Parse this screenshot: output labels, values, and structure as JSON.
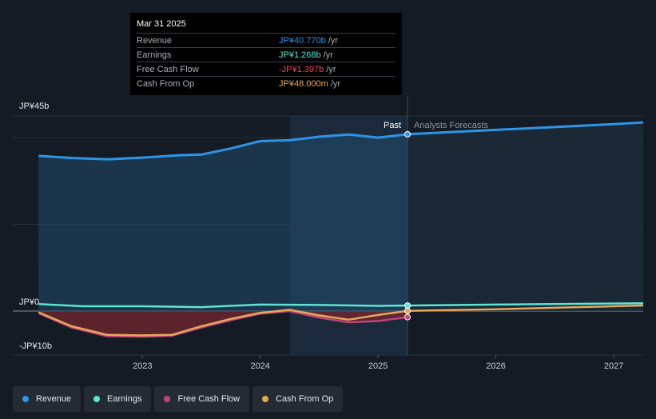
{
  "tooltip": {
    "date": "Mar 31 2025",
    "rows": [
      {
        "label": "Revenue",
        "value": "JP¥40.770b",
        "unit": "/yr",
        "color": "#2f95e6"
      },
      {
        "label": "Earnings",
        "value": "JP¥1.268b",
        "unit": "/yr",
        "color": "#5fe3d3"
      },
      {
        "label": "Free Cash Flow",
        "value": "-JP¥1.397b",
        "unit": "/yr",
        "color": "#e8445a"
      },
      {
        "label": "Cash From Op",
        "value": "JP¥48.000m",
        "unit": "/yr",
        "color": "#e6a85a"
      }
    ]
  },
  "legend": [
    {
      "label": "Revenue",
      "color": "#2f95e6"
    },
    {
      "label": "Earnings",
      "color": "#5fe3d3"
    },
    {
      "label": "Free Cash Flow",
      "color": "#c0457f"
    },
    {
      "label": "Cash From Op",
      "color": "#e6a85a"
    }
  ],
  "chart_data": {
    "type": "line",
    "title": "",
    "xlabel": "",
    "ylabel": "",
    "y_tick_labels": [
      "JP¥45b",
      "JP¥0",
      "-JP¥10b"
    ],
    "x_tick_labels": [
      "2023",
      "2024",
      "2025",
      "2026",
      "2027"
    ],
    "x_ticks": [
      2023,
      2024,
      2025,
      2026,
      2027
    ],
    "xlim": [
      2021.9,
      2027.25
    ],
    "ylim": [
      -10,
      45
    ],
    "divider_x": 2025.25,
    "divider_labels": {
      "past": "Past",
      "forecast": "Analysts Forecasts"
    },
    "highlight_start_x": 2024.25,
    "series": [
      {
        "name": "Revenue",
        "color": "#2f95e6",
        "points": [
          [
            2022.12,
            35.8
          ],
          [
            2022.4,
            35.3
          ],
          [
            2022.7,
            35.0
          ],
          [
            2023.0,
            35.4
          ],
          [
            2023.3,
            35.9
          ],
          [
            2023.5,
            36.1
          ],
          [
            2023.75,
            37.5
          ],
          [
            2024.0,
            39.2
          ],
          [
            2024.25,
            39.4
          ],
          [
            2024.5,
            40.2
          ],
          [
            2024.75,
            40.7
          ],
          [
            2025.0,
            40.0
          ],
          [
            2025.25,
            40.77
          ],
          [
            2026.0,
            41.8
          ],
          [
            2027.0,
            43.1
          ],
          [
            2027.25,
            43.5
          ]
        ]
      },
      {
        "name": "Earnings",
        "color": "#5fe3d3",
        "points": [
          [
            2022.12,
            1.6
          ],
          [
            2022.5,
            1.1
          ],
          [
            2023.0,
            1.1
          ],
          [
            2023.5,
            0.9
          ],
          [
            2024.0,
            1.5
          ],
          [
            2024.5,
            1.4
          ],
          [
            2025.0,
            1.2
          ],
          [
            2025.25,
            1.268
          ],
          [
            2026.0,
            1.5
          ],
          [
            2027.25,
            1.8
          ]
        ]
      },
      {
        "name": "Free Cash Flow",
        "color": "#c0457f",
        "points": [
          [
            2022.12,
            -0.5
          ],
          [
            2022.4,
            -3.8
          ],
          [
            2022.7,
            -5.8
          ],
          [
            2023.0,
            -5.9
          ],
          [
            2023.25,
            -5.7
          ],
          [
            2023.5,
            -3.8
          ],
          [
            2023.75,
            -2.1
          ],
          [
            2024.0,
            -0.6
          ],
          [
            2024.25,
            0.0
          ],
          [
            2024.5,
            -1.5
          ],
          [
            2024.75,
            -2.6
          ],
          [
            2025.0,
            -2.3
          ],
          [
            2025.25,
            -1.397
          ]
        ]
      },
      {
        "name": "Cash From Op",
        "color": "#e6a85a",
        "points": [
          [
            2022.12,
            -0.3
          ],
          [
            2022.4,
            -3.5
          ],
          [
            2022.7,
            -5.5
          ],
          [
            2023.0,
            -5.6
          ],
          [
            2023.25,
            -5.5
          ],
          [
            2023.5,
            -3.5
          ],
          [
            2023.75,
            -1.8
          ],
          [
            2024.0,
            -0.4
          ],
          [
            2024.25,
            0.3
          ],
          [
            2024.5,
            -1.0
          ],
          [
            2024.75,
            -2.0
          ],
          [
            2025.0,
            -0.9
          ],
          [
            2025.25,
            0.048
          ],
          [
            2026.0,
            0.4
          ],
          [
            2027.25,
            1.3
          ]
        ]
      }
    ]
  }
}
